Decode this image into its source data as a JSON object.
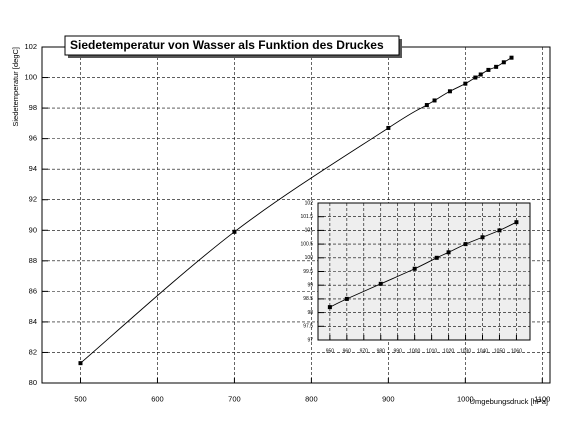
{
  "chart_data": [
    {
      "type": "line",
      "title": "Siedetemperatur von Wasser als Funktion des Druckes",
      "xlabel": "Umgebungsdruck [hPa]",
      "ylabel": "Siedetemperatur [degC]",
      "x": [
        500,
        700,
        900,
        950,
        960,
        980,
        1000,
        1013,
        1020,
        1030,
        1040,
        1050,
        1060
      ],
      "series": [
        {
          "color": "#000000",
          "values": [
            81.3,
            89.9,
            96.7,
            98.2,
            98.5,
            99.1,
            99.6,
            100.0,
            100.2,
            100.5,
            100.7,
            101.0,
            101.3
          ]
        }
      ],
      "xlim": [
        450,
        1110
      ],
      "xticks": [
        500,
        600,
        700,
        800,
        900,
        1000,
        1100
      ],
      "ylim": [
        80,
        102
      ],
      "yticks": [
        80,
        82,
        84,
        86,
        88,
        90,
        92,
        94,
        96,
        98,
        100,
        102
      ],
      "grid": true
    },
    {
      "type": "line",
      "x": [
        950,
        960,
        980,
        1000,
        1013,
        1020,
        1030,
        1040,
        1050,
        1060
      ],
      "series": [
        {
          "color": "#000000",
          "values": [
            98.2,
            98.5,
            99.05,
            99.6,
            100.0,
            100.2,
            100.5,
            100.75,
            101.0,
            101.3
          ]
        }
      ],
      "xlim": [
        943,
        1068
      ],
      "xticks": [
        950,
        960,
        970,
        980,
        990,
        1000,
        1010,
        1020,
        1030,
        1040,
        1050,
        1060
      ],
      "ylim": [
        97,
        102
      ],
      "yticks": [
        97,
        97.5,
        98,
        98.5,
        99,
        99.5,
        100,
        100.5,
        101,
        101.5,
        102
      ],
      "grid": true,
      "background": "#eeeeee"
    }
  ]
}
